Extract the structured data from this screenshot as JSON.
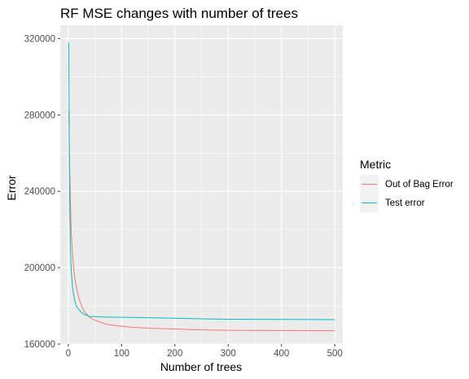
{
  "chart_data": {
    "type": "line",
    "title": "RF MSE changes with number of trees",
    "xlabel": "Number of trees",
    "ylabel": "Error",
    "xlim": [
      -15,
      515
    ],
    "ylim": [
      160000,
      327000
    ],
    "x_ticks": [
      0,
      100,
      200,
      300,
      400,
      500
    ],
    "y_ticks": [
      160000,
      200000,
      240000,
      280000,
      320000
    ],
    "x_tick_labels": [
      "0",
      "100",
      "200",
      "300",
      "400",
      "500"
    ],
    "y_tick_labels": [
      "160000",
      "200000",
      "240000",
      "280000",
      "320000"
    ],
    "grid": true,
    "legend": {
      "title": "Metric",
      "placement": "right"
    },
    "series": [
      {
        "name": "Out of Bag Error",
        "color": "#F8766D",
        "points": [
          [
            1,
            282000
          ],
          [
            2,
            262000
          ],
          [
            3,
            248000
          ],
          [
            4,
            236000
          ],
          [
            5,
            224000
          ],
          [
            6,
            216000
          ],
          [
            8,
            207000
          ],
          [
            10,
            200000
          ],
          [
            12,
            195000
          ],
          [
            15,
            190000
          ],
          [
            20,
            184000
          ],
          [
            25,
            180000
          ],
          [
            30,
            177000
          ],
          [
            40,
            174000
          ],
          [
            50,
            172500
          ],
          [
            60,
            171500
          ],
          [
            70,
            170500
          ],
          [
            80,
            170000
          ],
          [
            100,
            169300
          ],
          [
            120,
            168800
          ],
          [
            150,
            168300
          ],
          [
            200,
            167900
          ],
          [
            250,
            167400
          ],
          [
            300,
            167200
          ],
          [
            400,
            167100
          ],
          [
            500,
            167000
          ]
        ]
      },
      {
        "name": "Test error",
        "color": "#00BFC4",
        "points": [
          [
            1,
            318000
          ],
          [
            2,
            260000
          ],
          [
            3,
            230000
          ],
          [
            4,
            212000
          ],
          [
            5,
            203000
          ],
          [
            6,
            197000
          ],
          [
            8,
            190000
          ],
          [
            10,
            186000
          ],
          [
            12,
            183000
          ],
          [
            15,
            180000
          ],
          [
            20,
            178000
          ],
          [
            25,
            176500
          ],
          [
            30,
            175500
          ],
          [
            40,
            174500
          ],
          [
            50,
            174300
          ],
          [
            60,
            174200
          ],
          [
            100,
            174000
          ],
          [
            150,
            173800
          ],
          [
            200,
            173500
          ],
          [
            250,
            173200
          ],
          [
            300,
            173000
          ],
          [
            400,
            172900
          ],
          [
            500,
            172800
          ]
        ]
      }
    ]
  }
}
